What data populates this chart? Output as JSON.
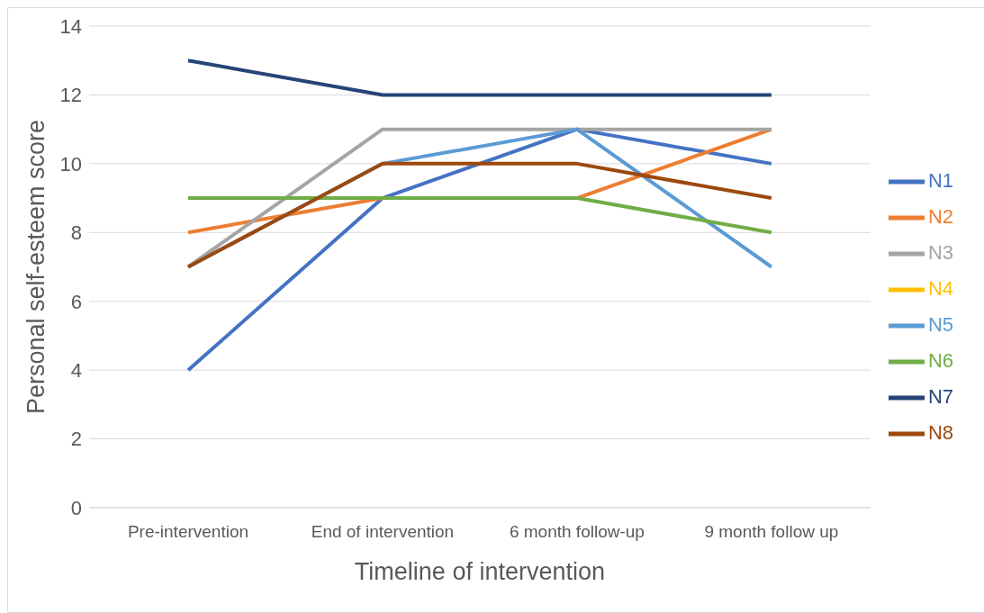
{
  "chart_data": {
    "type": "line",
    "xlabel": "Timeline of intervention",
    "ylabel": "Personal self-esteem score",
    "categories": [
      "Pre-intervention",
      "End of intervention",
      "6 month follow-up",
      "9 month follow up"
    ],
    "series": [
      {
        "name": "N1",
        "color": "#4472c4",
        "values": [
          4,
          9,
          11,
          10
        ]
      },
      {
        "name": "N2",
        "color": "#ed7d31",
        "values": [
          8,
          9,
          9,
          11
        ]
      },
      {
        "name": "N3",
        "color": "#a5a5a5",
        "values": [
          7,
          11,
          11,
          11
        ]
      },
      {
        "name": "N4",
        "color": "#ffc000",
        "values": [
          null,
          null,
          null,
          null
        ]
      },
      {
        "name": "N5",
        "color": "#5b9bd5",
        "values": [
          7,
          10,
          11,
          7
        ]
      },
      {
        "name": "N6",
        "color": "#70ad47",
        "values": [
          9,
          9,
          9,
          8
        ]
      },
      {
        "name": "N7",
        "color": "#264478",
        "values": [
          13,
          12,
          12,
          12
        ]
      },
      {
        "name": "N8",
        "color": "#9e480e",
        "values": [
          7,
          10,
          10,
          9
        ]
      }
    ],
    "ylim": [
      0,
      14
    ],
    "yticks": [
      0,
      2,
      4,
      6,
      8,
      10,
      12,
      14
    ],
    "grid": "y",
    "legend": "right",
    "marker": "none",
    "line_style": "solid"
  }
}
